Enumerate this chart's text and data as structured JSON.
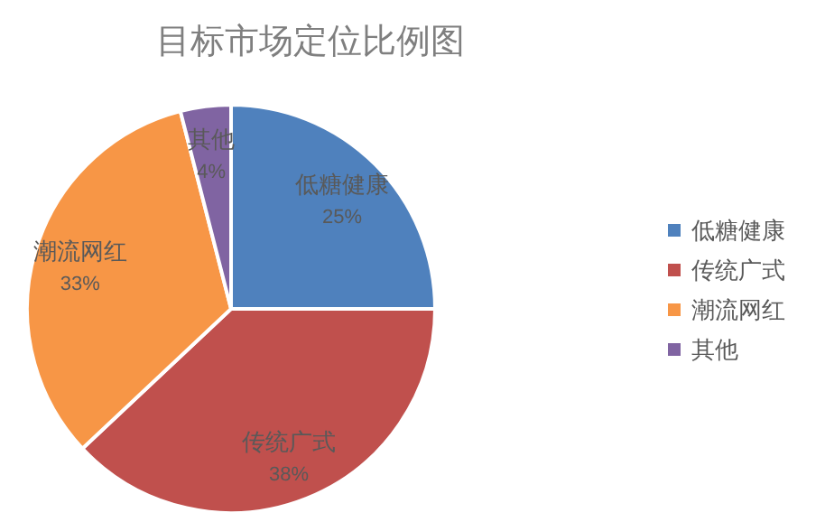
{
  "chart_data": {
    "type": "pie",
    "title": "目标市场定位比例图",
    "categories": [
      "低糖健康",
      "传统广式",
      "潮流网红",
      "其他"
    ],
    "values": [
      25,
      38,
      33,
      4
    ],
    "value_labels": [
      "25%",
      "38%",
      "33%",
      "4%"
    ],
    "colors": [
      "#4f81bd",
      "#c0504d",
      "#f79646",
      "#8064a2"
    ],
    "legend": "right"
  }
}
